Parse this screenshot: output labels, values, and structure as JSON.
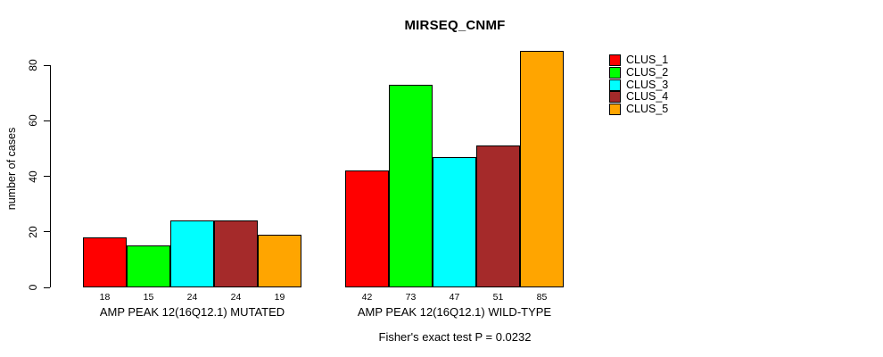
{
  "chart_data": {
    "type": "bar",
    "title": "MIRSEQ_CNMF",
    "xlabel": "",
    "ylabel": "number of cases",
    "categories": [
      "AMP PEAK 12(16Q12.1) MUTATED",
      "AMP PEAK 12(16Q12.1) WILD-TYPE"
    ],
    "series": [
      {
        "name": "CLUS_1",
        "color": "#FF0000",
        "values": [
          18,
          42
        ]
      },
      {
        "name": "CLUS_2",
        "color": "#00FF00",
        "values": [
          15,
          73
        ]
      },
      {
        "name": "CLUS_3",
        "color": "#00FFFF",
        "values": [
          24,
          47
        ]
      },
      {
        "name": "CLUS_4",
        "color": "#A52A2A",
        "values": [
          24,
          51
        ]
      },
      {
        "name": "CLUS_5",
        "color": "#FFA500",
        "values": [
          19,
          85
        ]
      }
    ],
    "yticks": [
      0,
      20,
      40,
      60,
      80
    ],
    "ylim": [
      0,
      85
    ],
    "bar_value_labels": true,
    "grid": false,
    "legend_position": "right",
    "annotation": "Fisher's exact test P = 0.0232",
    "bar_border_color": "#000000",
    "axis_color": "#000000",
    "background_color": "#FFFFFF"
  }
}
